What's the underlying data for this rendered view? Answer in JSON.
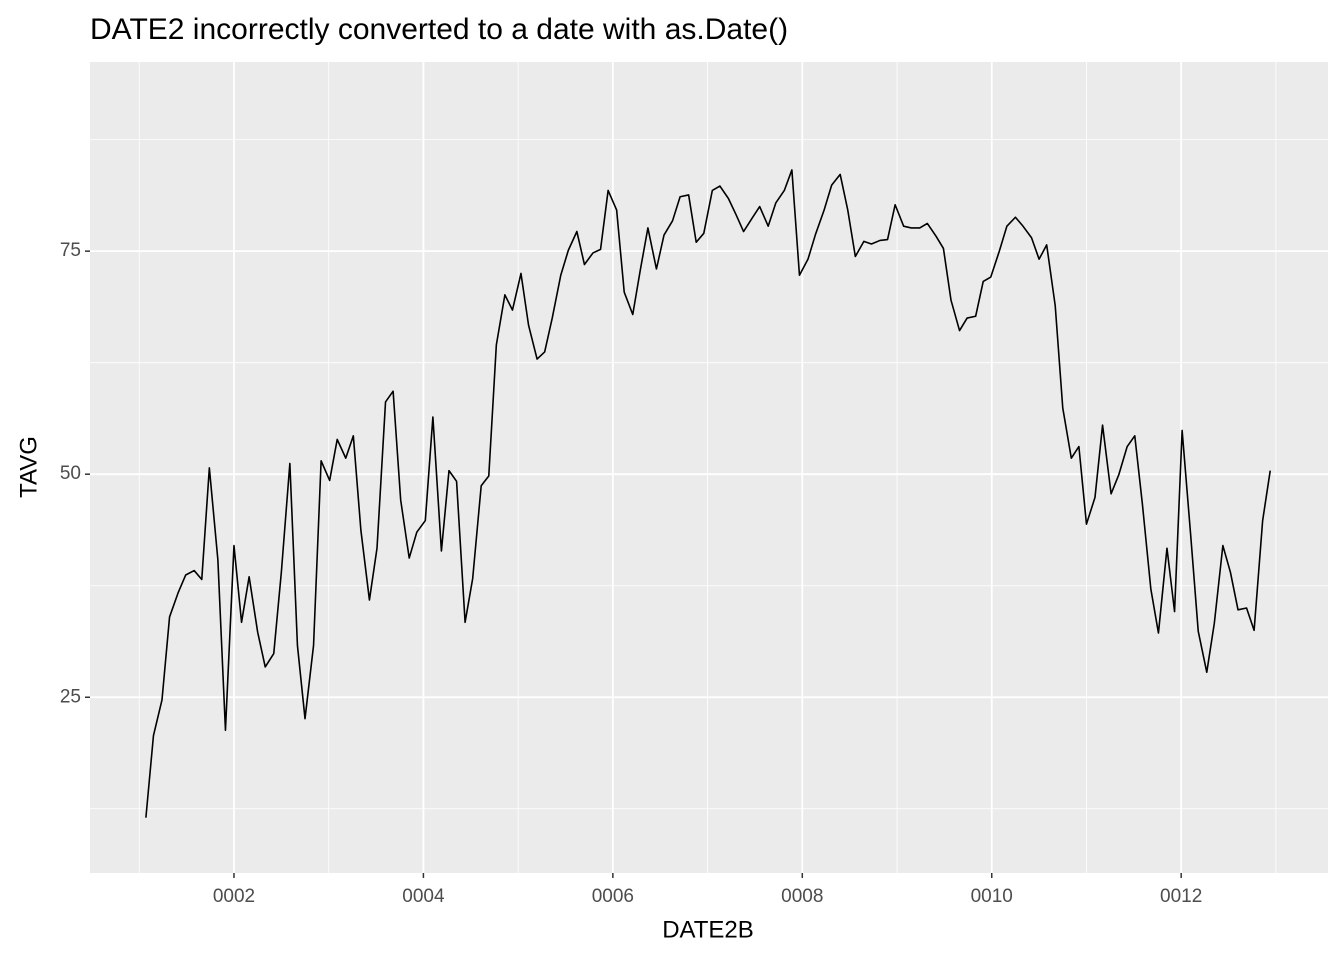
{
  "chart_data": {
    "type": "line",
    "title": "DATE2 incorrectly converted to a date with as.Date()",
    "x_label": "DATE2B",
    "y_label": "TAVG",
    "x": [
      1.07,
      1.15,
      1.24,
      1.32,
      1.41,
      1.49,
      1.58,
      1.66,
      1.74,
      1.83,
      1.91,
      2.0,
      2.08,
      2.16,
      2.25,
      2.33,
      2.42,
      2.5,
      2.59,
      2.67,
      2.75,
      2.84,
      2.92,
      3.01,
      3.09,
      3.18,
      3.26,
      3.34,
      3.43,
      3.51,
      3.6,
      3.68,
      3.76,
      3.85,
      3.93,
      4.02,
      4.1,
      4.19,
      4.27,
      4.35,
      4.44,
      4.52,
      4.61,
      4.69,
      4.77,
      4.86,
      4.94,
      5.03,
      5.11,
      5.2,
      5.28,
      5.36,
      5.45,
      5.53,
      5.62,
      5.7,
      5.79,
      5.87,
      5.95,
      6.04,
      6.12,
      6.21,
      6.29,
      6.37,
      6.46,
      6.54,
      6.63,
      6.71,
      6.8,
      6.88,
      6.96,
      7.05,
      7.13,
      7.22,
      7.3,
      7.38,
      7.47,
      7.55,
      7.64,
      7.72,
      7.81,
      7.89,
      7.97,
      8.06,
      8.14,
      8.23,
      8.31,
      8.4,
      8.48,
      8.56,
      8.65,
      8.73,
      8.82,
      8.9,
      8.98,
      9.07,
      9.15,
      9.24,
      9.32,
      9.41,
      9.49,
      9.57,
      9.66,
      9.74,
      9.83,
      9.91,
      9.99,
      10.08,
      10.16,
      10.25,
      10.33,
      10.42,
      10.5,
      10.58,
      10.67,
      10.75,
      10.84,
      10.92,
      11.0,
      11.09,
      11.17,
      11.26,
      11.34,
      11.43,
      11.51,
      11.59,
      11.68,
      11.76,
      11.85,
      11.93,
      12.01,
      12.1,
      12.18,
      12.27,
      12.35,
      12.44,
      12.52,
      12.6,
      12.69,
      12.77,
      12.86,
      12.94
    ],
    "series": [
      {
        "name": "TAVG",
        "color": "#000000",
        "values": [
          11.5,
          20.7,
          24.7,
          34.0,
          36.7,
          38.7,
          39.2,
          38.2,
          50.7,
          40.4,
          21.3,
          42.0,
          33.4,
          38.5,
          32.3,
          28.4,
          29.9,
          39.0,
          51.2,
          30.8,
          22.6,
          30.8,
          51.5,
          49.3,
          53.9,
          51.8,
          54.3,
          43.7,
          35.9,
          41.7,
          58.1,
          59.3,
          47.1,
          40.6,
          43.5,
          44.8,
          56.4,
          41.4,
          50.4,
          49.2,
          33.4,
          38.3,
          48.7,
          49.8,
          64.5,
          70.1,
          68.4,
          72.5,
          66.7,
          62.9,
          63.7,
          67.5,
          72.3,
          75.1,
          77.2,
          73.5,
          74.8,
          75.2,
          81.8,
          79.6,
          70.4,
          67.9,
          72.9,
          77.6,
          73.0,
          76.8,
          78.4,
          81.1,
          81.3,
          76.0,
          77.0,
          81.8,
          82.3,
          80.9,
          79.1,
          77.2,
          78.7,
          80.0,
          77.8,
          80.4,
          81.8,
          84.1,
          72.3,
          74.1,
          76.9,
          79.6,
          82.4,
          83.6,
          79.6,
          74.4,
          76.1,
          75.8,
          76.2,
          76.3,
          80.2,
          77.8,
          77.6,
          77.6,
          78.1,
          76.7,
          75.3,
          69.5,
          66.1,
          67.5,
          67.7,
          71.6,
          72.1,
          75.0,
          77.8,
          78.8,
          77.8,
          76.5,
          74.1,
          75.7,
          68.9,
          57.4,
          51.8,
          53.1,
          44.4,
          47.4,
          55.5,
          47.8,
          49.9,
          53.1,
          54.3,
          46.7,
          37.1,
          32.2,
          41.7,
          34.6,
          54.9,
          43.2,
          32.4,
          27.8,
          33.3,
          42.0,
          39.0,
          34.8,
          35.0,
          32.5,
          44.8,
          50.4
        ]
      }
    ],
    "xlim": [
      0.48,
      13.55
    ],
    "ylim": [
      5.3,
      96.2
    ],
    "xticks": [
      {
        "value": 2,
        "label": "0002"
      },
      {
        "value": 4,
        "label": "0004"
      },
      {
        "value": 6,
        "label": "0006"
      },
      {
        "value": 8,
        "label": "0008"
      },
      {
        "value": 10,
        "label": "0010"
      },
      {
        "value": 12,
        "label": "0012"
      }
    ],
    "yticks": [
      25,
      50,
      75
    ],
    "xminor": [
      1,
      3,
      5,
      7,
      9,
      11,
      13
    ],
    "yminor": [
      12.5,
      37.5,
      62.5,
      87.5
    ],
    "grid": true
  }
}
